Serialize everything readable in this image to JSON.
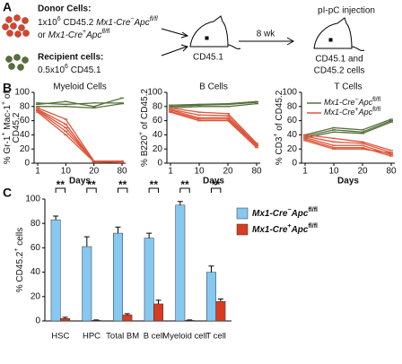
{
  "panel_labels": [
    "A",
    "B",
    "C"
  ],
  "schematic": {
    "donor_title": "Donor Cells:",
    "donor_line1": [
      "1x10",
      "6",
      " CD45.2 ",
      "Mx1-Cre",
      "−",
      "Apc",
      "fl/fl"
    ],
    "donor_line2": [
      "or ",
      "Mx1-Cre",
      "+",
      "Apc",
      "fl/fl"
    ],
    "recipient_title": "Recipient cells:",
    "recipient_line": [
      "0.5x10",
      "6",
      " CD45.1"
    ],
    "host_label": "CD45.1",
    "interval": "8 wk",
    "treatment": "pI-pC injection",
    "result_lines": [
      "CD45.1 and",
      "CD45.2 cells"
    ]
  },
  "chart_data": [
    {
      "type": "line",
      "title": "Myeloid Cells",
      "categories": [
        "1",
        "10",
        "20",
        "80"
      ],
      "x_label": "Days",
      "y_label": [
        [
          "% Gr-1",
          "+",
          " Mac-1",
          "+",
          " of"
        ],
        [
          "CD45.2"
        ]
      ],
      "ylim": [
        0,
        100
      ],
      "yticks": [
        0,
        20,
        40,
        60,
        80,
        100
      ],
      "series": [
        {
          "color": "#55703a",
          "values": [
            85,
            83,
            85,
            85
          ]
        },
        {
          "color": "#55703a",
          "values": [
            83,
            87,
            80,
            92
          ]
        },
        {
          "color": "#55703a",
          "values": [
            80,
            80,
            78,
            84
          ]
        },
        {
          "color": "#e0553a",
          "values": [
            78,
            62,
            3,
            2
          ]
        },
        {
          "color": "#e0553a",
          "values": [
            76,
            55,
            2,
            2
          ]
        },
        {
          "color": "#e0553a",
          "values": [
            75,
            50,
            2,
            1
          ]
        },
        {
          "color": "#e0553a",
          "values": [
            74,
            45,
            3,
            3
          ]
        },
        {
          "color": "#e0553a",
          "values": [
            72,
            40,
            2,
            2
          ]
        }
      ]
    },
    {
      "type": "line",
      "title": "B Cells",
      "categories": [
        "1",
        "10",
        "20",
        "80"
      ],
      "x_label": "Days",
      "y_label": [
        [
          "% B220",
          "+",
          " of CD45.2"
        ]
      ],
      "ylim": [
        0,
        100
      ],
      "yticks": [
        0,
        20,
        40,
        60,
        80,
        100
      ],
      "series": [
        {
          "color": "#55703a",
          "values": [
            82,
            83,
            84,
            87
          ]
        },
        {
          "color": "#55703a",
          "values": [
            80,
            82,
            83,
            86
          ]
        },
        {
          "color": "#55703a",
          "values": [
            78,
            80,
            80,
            84
          ]
        },
        {
          "color": "#e0553a",
          "values": [
            78,
            72,
            70,
            28
          ]
        },
        {
          "color": "#e0553a",
          "values": [
            76,
            68,
            67,
            26
          ]
        },
        {
          "color": "#e0553a",
          "values": [
            75,
            64,
            64,
            25
          ]
        },
        {
          "color": "#e0553a",
          "values": [
            73,
            62,
            62,
            24
          ]
        },
        {
          "color": "#e0553a",
          "values": [
            72,
            60,
            60,
            22
          ]
        }
      ]
    },
    {
      "type": "line",
      "title": "T Cells",
      "categories": [
        "1",
        "10",
        "20",
        "80"
      ],
      "x_label": "Days",
      "y_label": [
        [
          "% CD3",
          "+",
          " of CD45.2"
        ]
      ],
      "ylim": [
        0,
        100
      ],
      "yticks": [
        0,
        20,
        40,
        60,
        80,
        100
      ],
      "legend": [
        {
          "color": "#55703a",
          "text": [
            "Mx1-Cre",
            "−",
            "Apc",
            "fl/fl"
          ]
        },
        {
          "color": "#e0553a",
          "text": [
            "Mx1-Cre",
            "+",
            "Apc",
            "fl/fl"
          ]
        }
      ],
      "series": [
        {
          "color": "#55703a",
          "values": [
            40,
            50,
            47,
            62
          ]
        },
        {
          "color": "#55703a",
          "values": [
            38,
            47,
            44,
            60
          ]
        },
        {
          "color": "#55703a",
          "values": [
            36,
            44,
            42,
            58
          ]
        },
        {
          "color": "#e0553a",
          "values": [
            40,
            35,
            30,
            18
          ]
        },
        {
          "color": "#e0553a",
          "values": [
            38,
            30,
            28,
            15
          ]
        },
        {
          "color": "#e0553a",
          "values": [
            36,
            25,
            25,
            12
          ]
        },
        {
          "color": "#e0553a",
          "values": [
            34,
            22,
            22,
            10
          ]
        },
        {
          "color": "#e0553a",
          "values": [
            32,
            20,
            20,
            14
          ]
        }
      ]
    },
    {
      "type": "bar",
      "categories": [
        "HSC",
        "HPC",
        "Total BM",
        "B cell",
        "Myeloid cell",
        "T cell"
      ],
      "y_label": [
        "% CD45.2",
        "+",
        " cells"
      ],
      "ylim": [
        0,
        100
      ],
      "yticks": [
        0,
        20,
        40,
        60,
        80,
        100
      ],
      "significance": [
        "**",
        "**",
        "**",
        "**",
        "**",
        "**"
      ],
      "series": [
        {
          "name": [
            "Mx1-Cre",
            "−",
            "Apc",
            "fl/fl"
          ],
          "color": "#86c8f0",
          "values": [
            83,
            61,
            72,
            68,
            95,
            40
          ],
          "errors": [
            3,
            8,
            5,
            4,
            3,
            5
          ]
        },
        {
          "name": [
            "Mx1-Cre",
            "+",
            "Apc",
            "fl/fl"
          ],
          "color": "#d83c20",
          "values": [
            2,
            0.5,
            5,
            14,
            0.5,
            16
          ],
          "errors": [
            1,
            0.3,
            1,
            3,
            0.3,
            2
          ]
        }
      ]
    }
  ]
}
